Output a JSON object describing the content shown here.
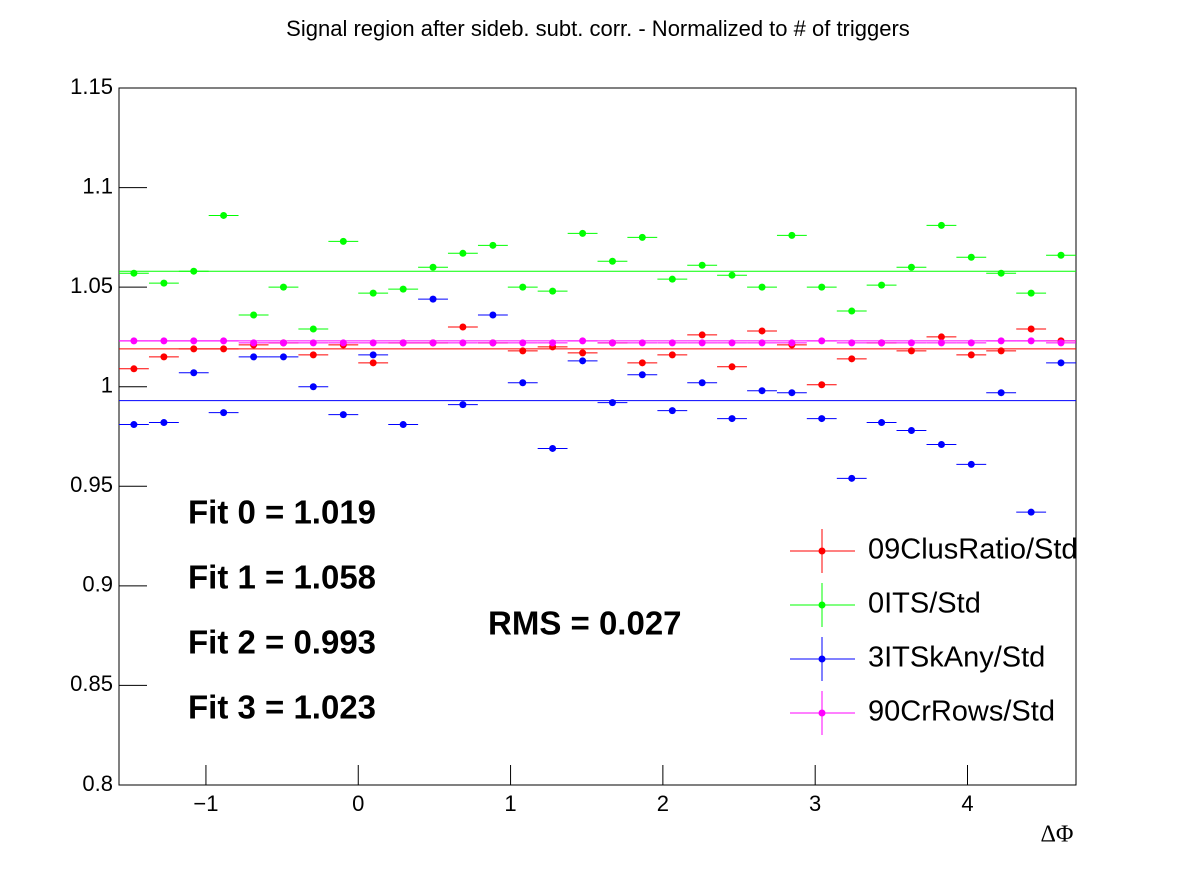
{
  "chart_data": {
    "type": "errorbar",
    "title": "Signal region after sideb. subt. corr. - Normalized to # of triggers",
    "x_label": "ΔΦ",
    "x": [
      -1.473,
      -1.276,
      -1.08,
      -0.884,
      -0.687,
      -0.491,
      -0.295,
      -0.098,
      0.098,
      0.295,
      0.491,
      0.687,
      0.884,
      1.08,
      1.276,
      1.473,
      1.669,
      1.865,
      2.062,
      2.258,
      2.454,
      2.651,
      2.847,
      3.043,
      3.24,
      3.436,
      3.632,
      3.829,
      4.025,
      4.221,
      4.418,
      4.614
    ],
    "xerr": 0.098,
    "xlim": [
      -1.5708,
      4.7124
    ],
    "ylim": [
      0.8,
      1.15
    ],
    "xticks": [
      {
        "value": -1,
        "label": "−1"
      },
      0,
      1,
      2,
      3,
      4
    ],
    "yticks": [
      0.8,
      0.85,
      0.9,
      0.95,
      1,
      1.05,
      1.1,
      1.15
    ],
    "series": [
      {
        "name": "09ClusRatio/Std",
        "color": "#ff0000",
        "fit": 1.019,
        "values": [
          1.009,
          1.015,
          1.019,
          1.019,
          1.021,
          1.022,
          1.016,
          1.021,
          1.012,
          1.022,
          1.022,
          1.03,
          1.022,
          1.018,
          1.02,
          1.017,
          1.022,
          1.012,
          1.016,
          1.026,
          1.01,
          1.028,
          1.021,
          1.001,
          1.014,
          1.022,
          1.018,
          1.025,
          1.016,
          1.018,
          1.029,
          1.023
        ]
      },
      {
        "name": "0ITS/Std",
        "color": "#00ff00",
        "fit": 1.058,
        "values": [
          1.057,
          1.052,
          1.058,
          1.086,
          1.036,
          1.05,
          1.029,
          1.073,
          1.047,
          1.049,
          1.06,
          1.067,
          1.071,
          1.05,
          1.048,
          1.077,
          1.063,
          1.075,
          1.054,
          1.061,
          1.056,
          1.05,
          1.076,
          1.05,
          1.038,
          1.051,
          1.06,
          1.081,
          1.065,
          1.057,
          1.047,
          1.066
        ]
      },
      {
        "name": "3ITSkAny/Std",
        "color": "#0000ff",
        "fit": 0.993,
        "values": [
          0.981,
          0.982,
          1.007,
          0.987,
          1.015,
          1.015,
          1.0,
          0.986,
          1.016,
          0.981,
          1.044,
          0.991,
          1.036,
          1.002,
          0.969,
          1.013,
          0.992,
          1.006,
          0.988,
          1.002,
          0.984,
          0.998,
          0.997,
          0.984,
          0.954,
          0.982,
          0.978,
          0.971,
          0.961,
          0.997,
          0.937,
          1.012
        ]
      },
      {
        "name": "90CrRows/Std",
        "color": "#ff00ff",
        "fit": 1.023,
        "values": [
          1.023,
          1.023,
          1.023,
          1.023,
          1.022,
          1.022,
          1.022,
          1.022,
          1.022,
          1.022,
          1.022,
          1.022,
          1.022,
          1.022,
          1.022,
          1.023,
          1.022,
          1.022,
          1.022,
          1.022,
          1.022,
          1.022,
          1.022,
          1.023,
          1.022,
          1.022,
          1.022,
          1.022,
          1.022,
          1.023,
          1.023,
          1.022
        ]
      }
    ],
    "annotations": [
      "Fit 0 = 1.019",
      "Fit 1 = 1.058",
      "Fit 2 = 0.993",
      "Fit 3 = 1.023",
      "RMS = 0.027"
    ]
  }
}
